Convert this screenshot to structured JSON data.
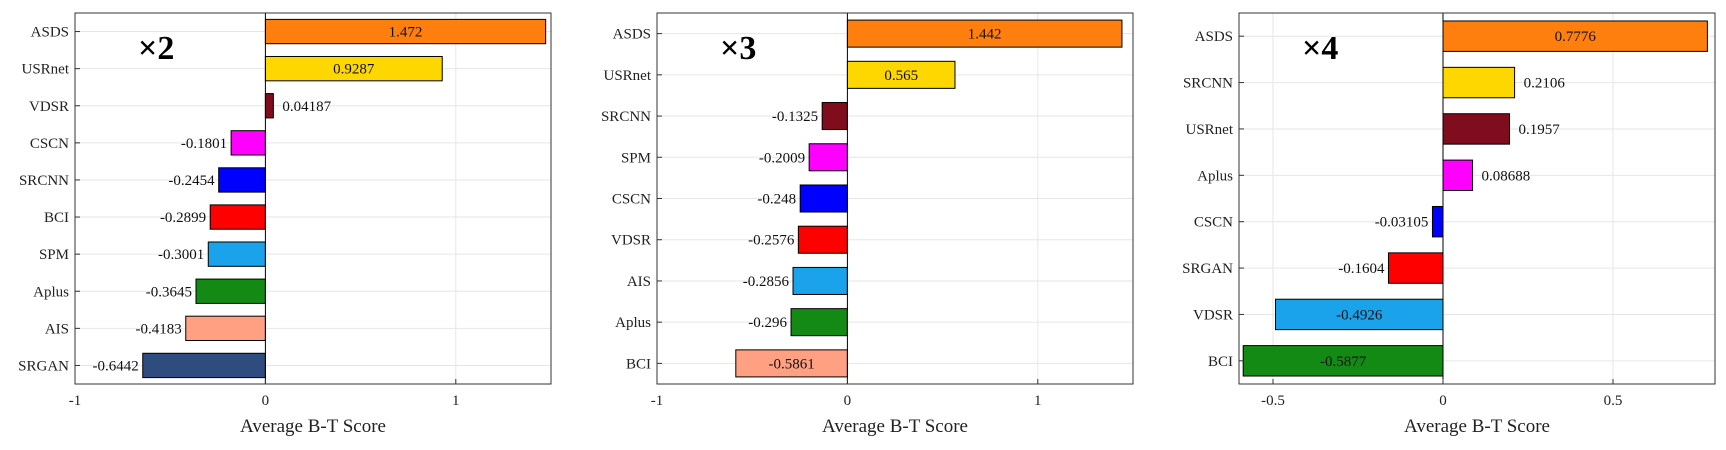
{
  "chart_data": [
    {
      "type": "bar",
      "orientation": "horizontal",
      "title": "×2",
      "xlabel": "Average B-T Score",
      "xlim": [
        -1,
        1.5
      ],
      "xticks": [
        -1,
        0,
        1
      ],
      "xtick_labels": [
        "-1",
        "0",
        "1"
      ],
      "grid": true,
      "categories": [
        "ASDS",
        "USRnet",
        "VDSR",
        "CSCN",
        "SRCNN",
        "BCI",
        "SPM",
        "Aplus",
        "AIS",
        "SRGAN"
      ],
      "values": [
        1.472,
        0.9287,
        0.04187,
        -0.1801,
        -0.2454,
        -0.2899,
        -0.3001,
        -0.3645,
        -0.4183,
        -0.6442
      ],
      "value_labels": [
        "1.472",
        "0.9287",
        "0.04187",
        "-0.1801",
        "-0.2454",
        "-0.2899",
        "-0.3001",
        "-0.3645",
        "-0.4183",
        "-0.6442"
      ],
      "label_inside": [
        true,
        true,
        false,
        false,
        false,
        false,
        false,
        false,
        false,
        false
      ],
      "colors": [
        "#FF7F0E",
        "#FFD700",
        "#7F0D1E",
        "#FF00FF",
        "#0000FF",
        "#FF0000",
        "#1AA3EA",
        "#138A13",
        "#FFA082",
        "#2F4C7F"
      ]
    },
    {
      "type": "bar",
      "orientation": "horizontal",
      "title": "×3",
      "xlabel": "Average B-T Score",
      "xlim": [
        -1,
        1.5
      ],
      "xticks": [
        -1,
        0,
        1
      ],
      "xtick_labels": [
        "-1",
        "0",
        "1"
      ],
      "grid": true,
      "categories": [
        "ASDS",
        "USRnet",
        "SRCNN",
        "SPM",
        "CSCN",
        "VDSR",
        "AIS",
        "Aplus",
        "BCI"
      ],
      "values": [
        1.442,
        0.565,
        -0.1325,
        -0.2009,
        -0.248,
        -0.2576,
        -0.2856,
        -0.296,
        -0.5861
      ],
      "value_labels": [
        "1.442",
        "0.565",
        "-0.1325",
        "-0.2009",
        "-0.248",
        "-0.2576",
        "-0.2856",
        "-0.296",
        "-0.5861"
      ],
      "label_inside": [
        true,
        true,
        false,
        false,
        false,
        false,
        false,
        false,
        true
      ],
      "colors": [
        "#FF7F0E",
        "#FFD700",
        "#7F0D1E",
        "#FF00FF",
        "#0000FF",
        "#FF0000",
        "#1AA3EA",
        "#138A13",
        "#FFA082"
      ]
    },
    {
      "type": "bar",
      "orientation": "horizontal",
      "title": "×4",
      "xlabel": "Average B-T Score",
      "xlim": [
        -0.6,
        0.8
      ],
      "xticks": [
        -0.5,
        0,
        0.5
      ],
      "xtick_labels": [
        "-0.5",
        "0",
        "0.5"
      ],
      "grid": true,
      "categories": [
        "ASDS",
        "SRCNN",
        "USRnet",
        "Aplus",
        "CSCN",
        "SRGAN",
        "VDSR",
        "BCI"
      ],
      "values": [
        0.7776,
        0.2106,
        0.1957,
        0.08688,
        -0.03105,
        -0.1604,
        -0.4926,
        -0.5877
      ],
      "value_labels": [
        "0.7776",
        "0.2106",
        "0.1957",
        "0.08688",
        "-0.03105",
        "-0.1604",
        "-0.4926",
        "-0.5877"
      ],
      "label_inside": [
        true,
        false,
        false,
        false,
        false,
        false,
        true,
        true
      ],
      "colors": [
        "#FF7F0E",
        "#FFD700",
        "#7F0D1E",
        "#FF00FF",
        "#0000FF",
        "#FF0000",
        "#1AA3EA",
        "#138A13"
      ]
    }
  ]
}
